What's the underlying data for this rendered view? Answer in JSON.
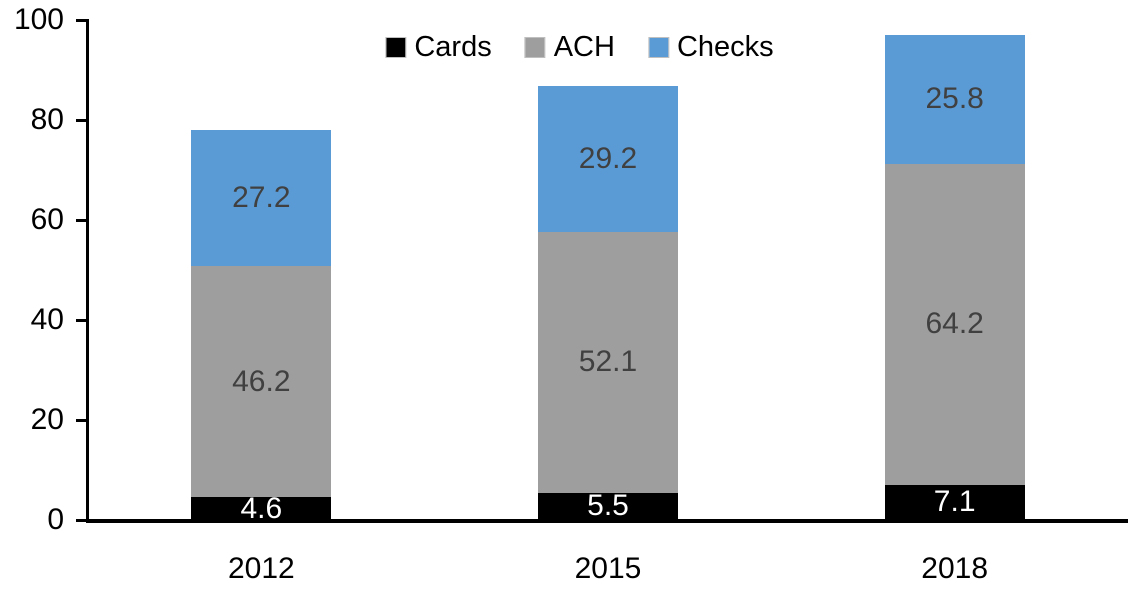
{
  "chart": {
    "background": "#FFFFFF",
    "axis_color": "#000000",
    "tick_label_color": "#000000",
    "category_label_color": "#000000"
  },
  "chart_data": {
    "type": "bar",
    "stacked": true,
    "title": "",
    "xlabel": "",
    "ylabel": "",
    "categories": [
      "2012",
      "2015",
      "2018"
    ],
    "series": [
      {
        "name": "Cards",
        "color": "#000000",
        "label_color": "#FFFFFF",
        "values": [
          4.6,
          5.5,
          7.1
        ]
      },
      {
        "name": "ACH",
        "color": "#9E9E9E",
        "label_color": "#404040",
        "values": [
          46.2,
          52.1,
          64.2
        ]
      },
      {
        "name": "Checks",
        "color": "#5B9BD5",
        "label_color": "#404040",
        "values": [
          27.2,
          29.2,
          25.8
        ]
      }
    ],
    "totals": [
      78.0,
      86.8,
      97.1
    ],
    "ylim": [
      0,
      100
    ],
    "yticks": [
      0,
      20,
      40,
      60,
      80,
      100
    ],
    "grid": false,
    "data_labels": true,
    "legend_position": "top"
  }
}
